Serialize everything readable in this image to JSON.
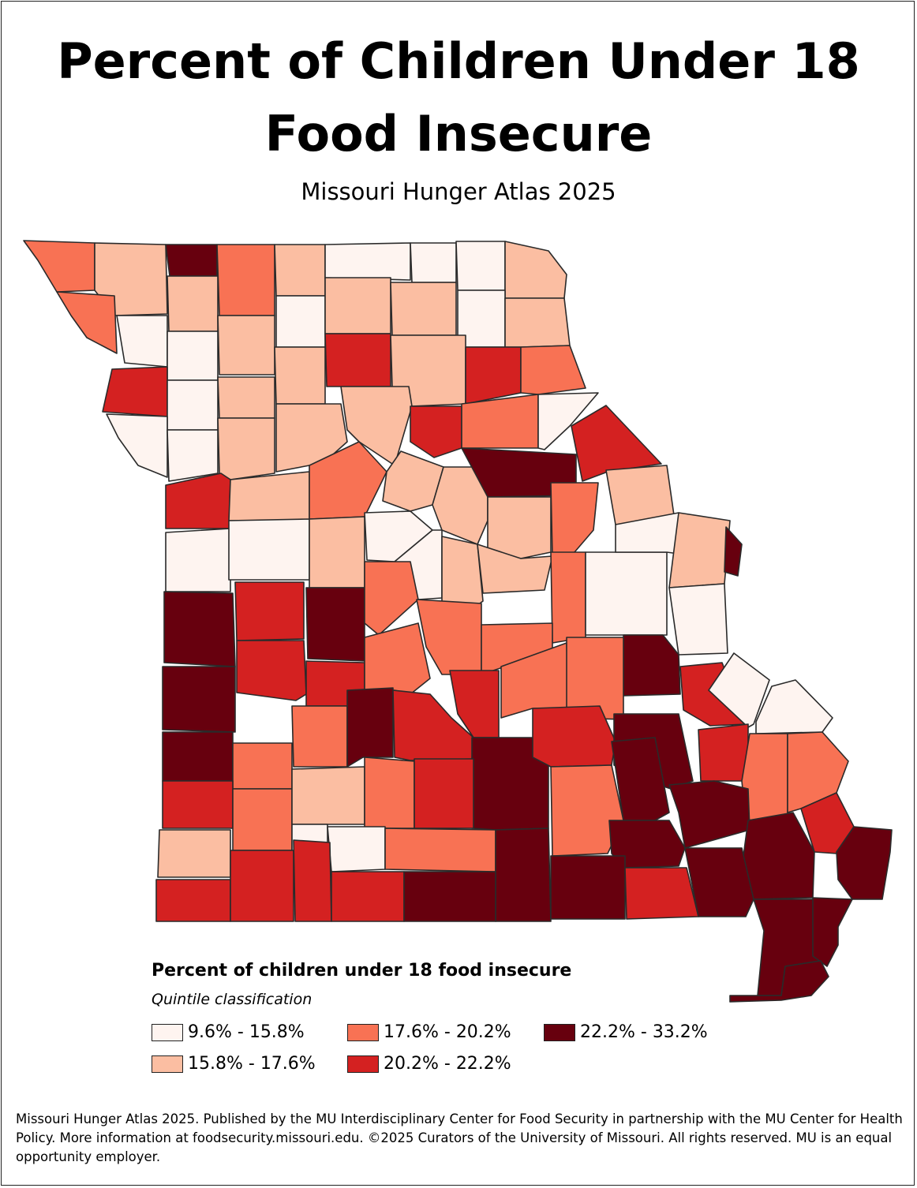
{
  "title": "Percent of Children Under 18\nFood Insecure",
  "subtitle": "Missouri Hunger Atlas 2025",
  "legend": {
    "title": "Percent of children under 18 food insecure",
    "subtitle": "Quintile classification",
    "classes": [
      {
        "label": "9.6% - 15.8%",
        "color": "#fef4f0"
      },
      {
        "label": "15.8% - 17.6%",
        "color": "#fbbea2"
      },
      {
        "label": "17.6% - 20.2%",
        "color": "#f87254"
      },
      {
        "label": "20.2% - 22.2%",
        "color": "#d42121"
      },
      {
        "label": "22.2% - 33.2%",
        "color": "#67000e"
      }
    ]
  },
  "map": {
    "region": "Missouri",
    "unit": "county",
    "classification": "quintile"
  },
  "footer": "Missouri Hunger Atlas 2025. Published by the MU Interdisciplinary Center for Food Security in partnership with the MU Center for Health Policy. More information at foodsecurity.missouri.edu. ©2025 Curators of the University of Missouri. All rights reserved. MU is an equal opportunity employer."
}
